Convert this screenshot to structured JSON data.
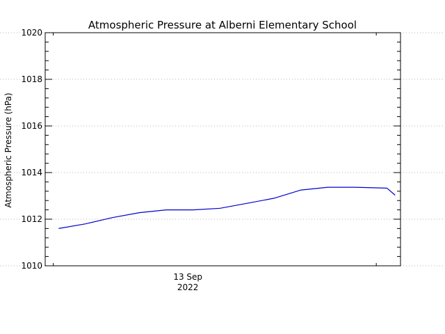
{
  "chart_data": {
    "type": "line",
    "title": "Atmospheric Pressure at Alberni Elementary School",
    "xlabel": "",
    "ylabel": "Atmospheric Pressure (hPa)",
    "ylim": [
      1010,
      1020
    ],
    "y_ticks": [
      1010,
      1012,
      1014,
      1016,
      1018,
      1020
    ],
    "y_tick_labels": [
      "1010",
      "1012",
      "1014",
      "1016",
      "1018",
      "1020"
    ],
    "xlim": [
      -0.3,
      12.9
    ],
    "x_units": "hours since 13 Sep 2022 00:00",
    "x_ticks": [
      0,
      12
    ],
    "x_tick_labels": [
      {
        "x": 5,
        "line1": "13 Sep",
        "line2": "2022"
      }
    ],
    "grid": true,
    "grid_axis": "y",
    "series": [
      {
        "color": "#0000cc",
        "x": [
          0.2,
          1.2,
          2.2,
          3.2,
          4.2,
          5.2,
          6.2,
          7.2,
          8.2,
          9.2,
          10.2,
          11.2,
          12.4
        ],
        "y": [
          1011.6,
          1011.8,
          1012.07,
          1012.28,
          1012.4,
          1012.4,
          1012.47,
          1012.68,
          1012.9,
          1013.25,
          1013.37,
          1013.37,
          1013.33
        ]
      }
    ],
    "series_tail": {
      "x": [
        12.4,
        12.7
      ],
      "y": [
        1013.33,
        1013.03
      ]
    }
  }
}
